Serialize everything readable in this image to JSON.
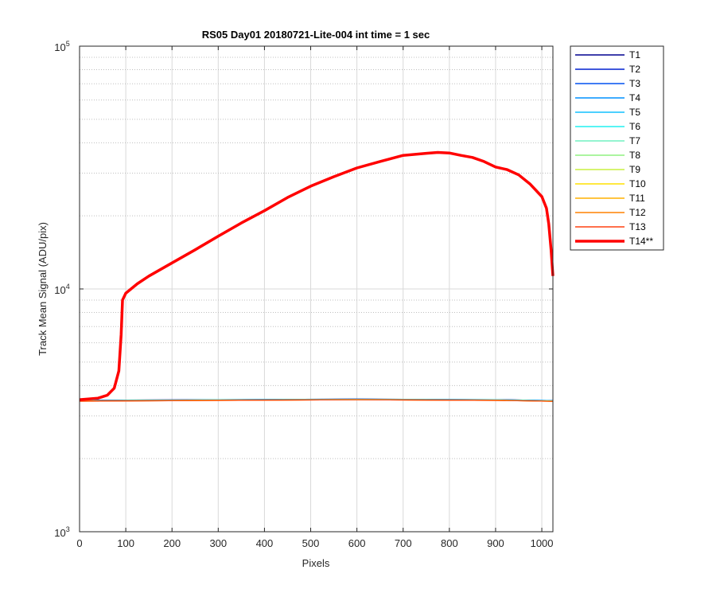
{
  "chart_data": {
    "type": "line",
    "title": "RS05 Day01 20180721-Lite-004 int time = 1 sec",
    "xlabel": "Pixels",
    "ylabel": "Track Mean Signal (ADU/pix)",
    "xlim": [
      0,
      1024
    ],
    "ylim": [
      1000,
      100000
    ],
    "yscale": "log",
    "grid": true,
    "legend_position": "outside-top-right",
    "x_ticks": [
      0,
      100,
      200,
      300,
      400,
      500,
      600,
      700,
      800,
      900,
      1000
    ],
    "y_ticks": [
      {
        "value": 1000,
        "base": "10",
        "exp": "3"
      },
      {
        "value": 10000,
        "base": "10",
        "exp": "4"
      },
      {
        "value": 100000,
        "base": "10",
        "exp": "5"
      }
    ],
    "series": [
      {
        "name": "T1",
        "color": "#00008f",
        "points": [
          [
            0,
            3480
          ],
          [
            300,
            3500
          ],
          [
            600,
            3520
          ],
          [
            900,
            3500
          ],
          [
            1024,
            3470
          ]
        ]
      },
      {
        "name": "T2",
        "color": "#0020d0",
        "points": [
          [
            0,
            3480
          ],
          [
            300,
            3500
          ],
          [
            600,
            3520
          ],
          [
            900,
            3500
          ],
          [
            1024,
            3470
          ]
        ]
      },
      {
        "name": "T3",
        "color": "#0050f0",
        "points": [
          [
            0,
            3470
          ],
          [
            300,
            3495
          ],
          [
            600,
            3515
          ],
          [
            900,
            3495
          ],
          [
            1024,
            3465
          ]
        ]
      },
      {
        "name": "T4",
        "color": "#0090ff",
        "points": [
          [
            0,
            3470
          ],
          [
            300,
            3495
          ],
          [
            600,
            3515
          ],
          [
            900,
            3495
          ],
          [
            1024,
            3465
          ]
        ]
      },
      {
        "name": "T5",
        "color": "#10c0ff",
        "points": [
          [
            0,
            3465
          ],
          [
            300,
            3490
          ],
          [
            600,
            3510
          ],
          [
            900,
            3490
          ],
          [
            1024,
            3460
          ]
        ]
      },
      {
        "name": "T6",
        "color": "#20f0f0",
        "points": [
          [
            0,
            3465
          ],
          [
            300,
            3490
          ],
          [
            600,
            3510
          ],
          [
            900,
            3490
          ],
          [
            1024,
            3460
          ]
        ]
      },
      {
        "name": "T7",
        "color": "#70f0c0",
        "points": [
          [
            0,
            3460
          ],
          [
            300,
            3485
          ],
          [
            600,
            3505
          ],
          [
            900,
            3485
          ],
          [
            1024,
            3455
          ]
        ]
      },
      {
        "name": "T8",
        "color": "#90f080",
        "points": [
          [
            0,
            3460
          ],
          [
            300,
            3485
          ],
          [
            600,
            3505
          ],
          [
            900,
            3485
          ],
          [
            1024,
            3455
          ]
        ]
      },
      {
        "name": "T9",
        "color": "#c8f040",
        "points": [
          [
            0,
            3455
          ],
          [
            300,
            3480
          ],
          [
            600,
            3500
          ],
          [
            900,
            3480
          ],
          [
            1024,
            3450
          ]
        ]
      },
      {
        "name": "T10",
        "color": "#ffe000",
        "points": [
          [
            0,
            3455
          ],
          [
            300,
            3480
          ],
          [
            600,
            3500
          ],
          [
            900,
            3480
          ],
          [
            1024,
            3450
          ]
        ]
      },
      {
        "name": "T11",
        "color": "#ffb000",
        "points": [
          [
            0,
            3450
          ],
          [
            300,
            3475
          ],
          [
            600,
            3495
          ],
          [
            900,
            3475
          ],
          [
            1024,
            3445
          ]
        ]
      },
      {
        "name": "T12",
        "color": "#ff8000",
        "points": [
          [
            0,
            3450
          ],
          [
            300,
            3475
          ],
          [
            600,
            3495
          ],
          [
            900,
            3475
          ],
          [
            1024,
            3445
          ]
        ]
      },
      {
        "name": "T13",
        "color": "#ff4010",
        "points": [
          [
            0,
            3450
          ],
          [
            300,
            3475
          ],
          [
            600,
            3495
          ],
          [
            900,
            3475
          ],
          [
            1024,
            3445
          ]
        ]
      },
      {
        "name": "T14**",
        "color": "#ff0000",
        "bold": true,
        "points": [
          [
            0,
            3500
          ],
          [
            40,
            3550
          ],
          [
            60,
            3650
          ],
          [
            75,
            3900
          ],
          [
            85,
            4600
          ],
          [
            90,
            6500
          ],
          [
            93,
            9000
          ],
          [
            100,
            9600
          ],
          [
            125,
            10500
          ],
          [
            150,
            11300
          ],
          [
            200,
            12800
          ],
          [
            250,
            14500
          ],
          [
            300,
            16500
          ],
          [
            350,
            18700
          ],
          [
            400,
            21000
          ],
          [
            450,
            23800
          ],
          [
            500,
            26500
          ],
          [
            550,
            29000
          ],
          [
            600,
            31500
          ],
          [
            650,
            33500
          ],
          [
            700,
            35500
          ],
          [
            750,
            36200
          ],
          [
            775,
            36500
          ],
          [
            800,
            36300
          ],
          [
            825,
            35500
          ],
          [
            850,
            34800
          ],
          [
            875,
            33500
          ],
          [
            900,
            31800
          ],
          [
            925,
            31000
          ],
          [
            950,
            29500
          ],
          [
            975,
            27000
          ],
          [
            1000,
            24000
          ],
          [
            1010,
            21500
          ],
          [
            1015,
            18500
          ],
          [
            1020,
            14500
          ],
          [
            1024,
            11300
          ]
        ]
      }
    ]
  }
}
